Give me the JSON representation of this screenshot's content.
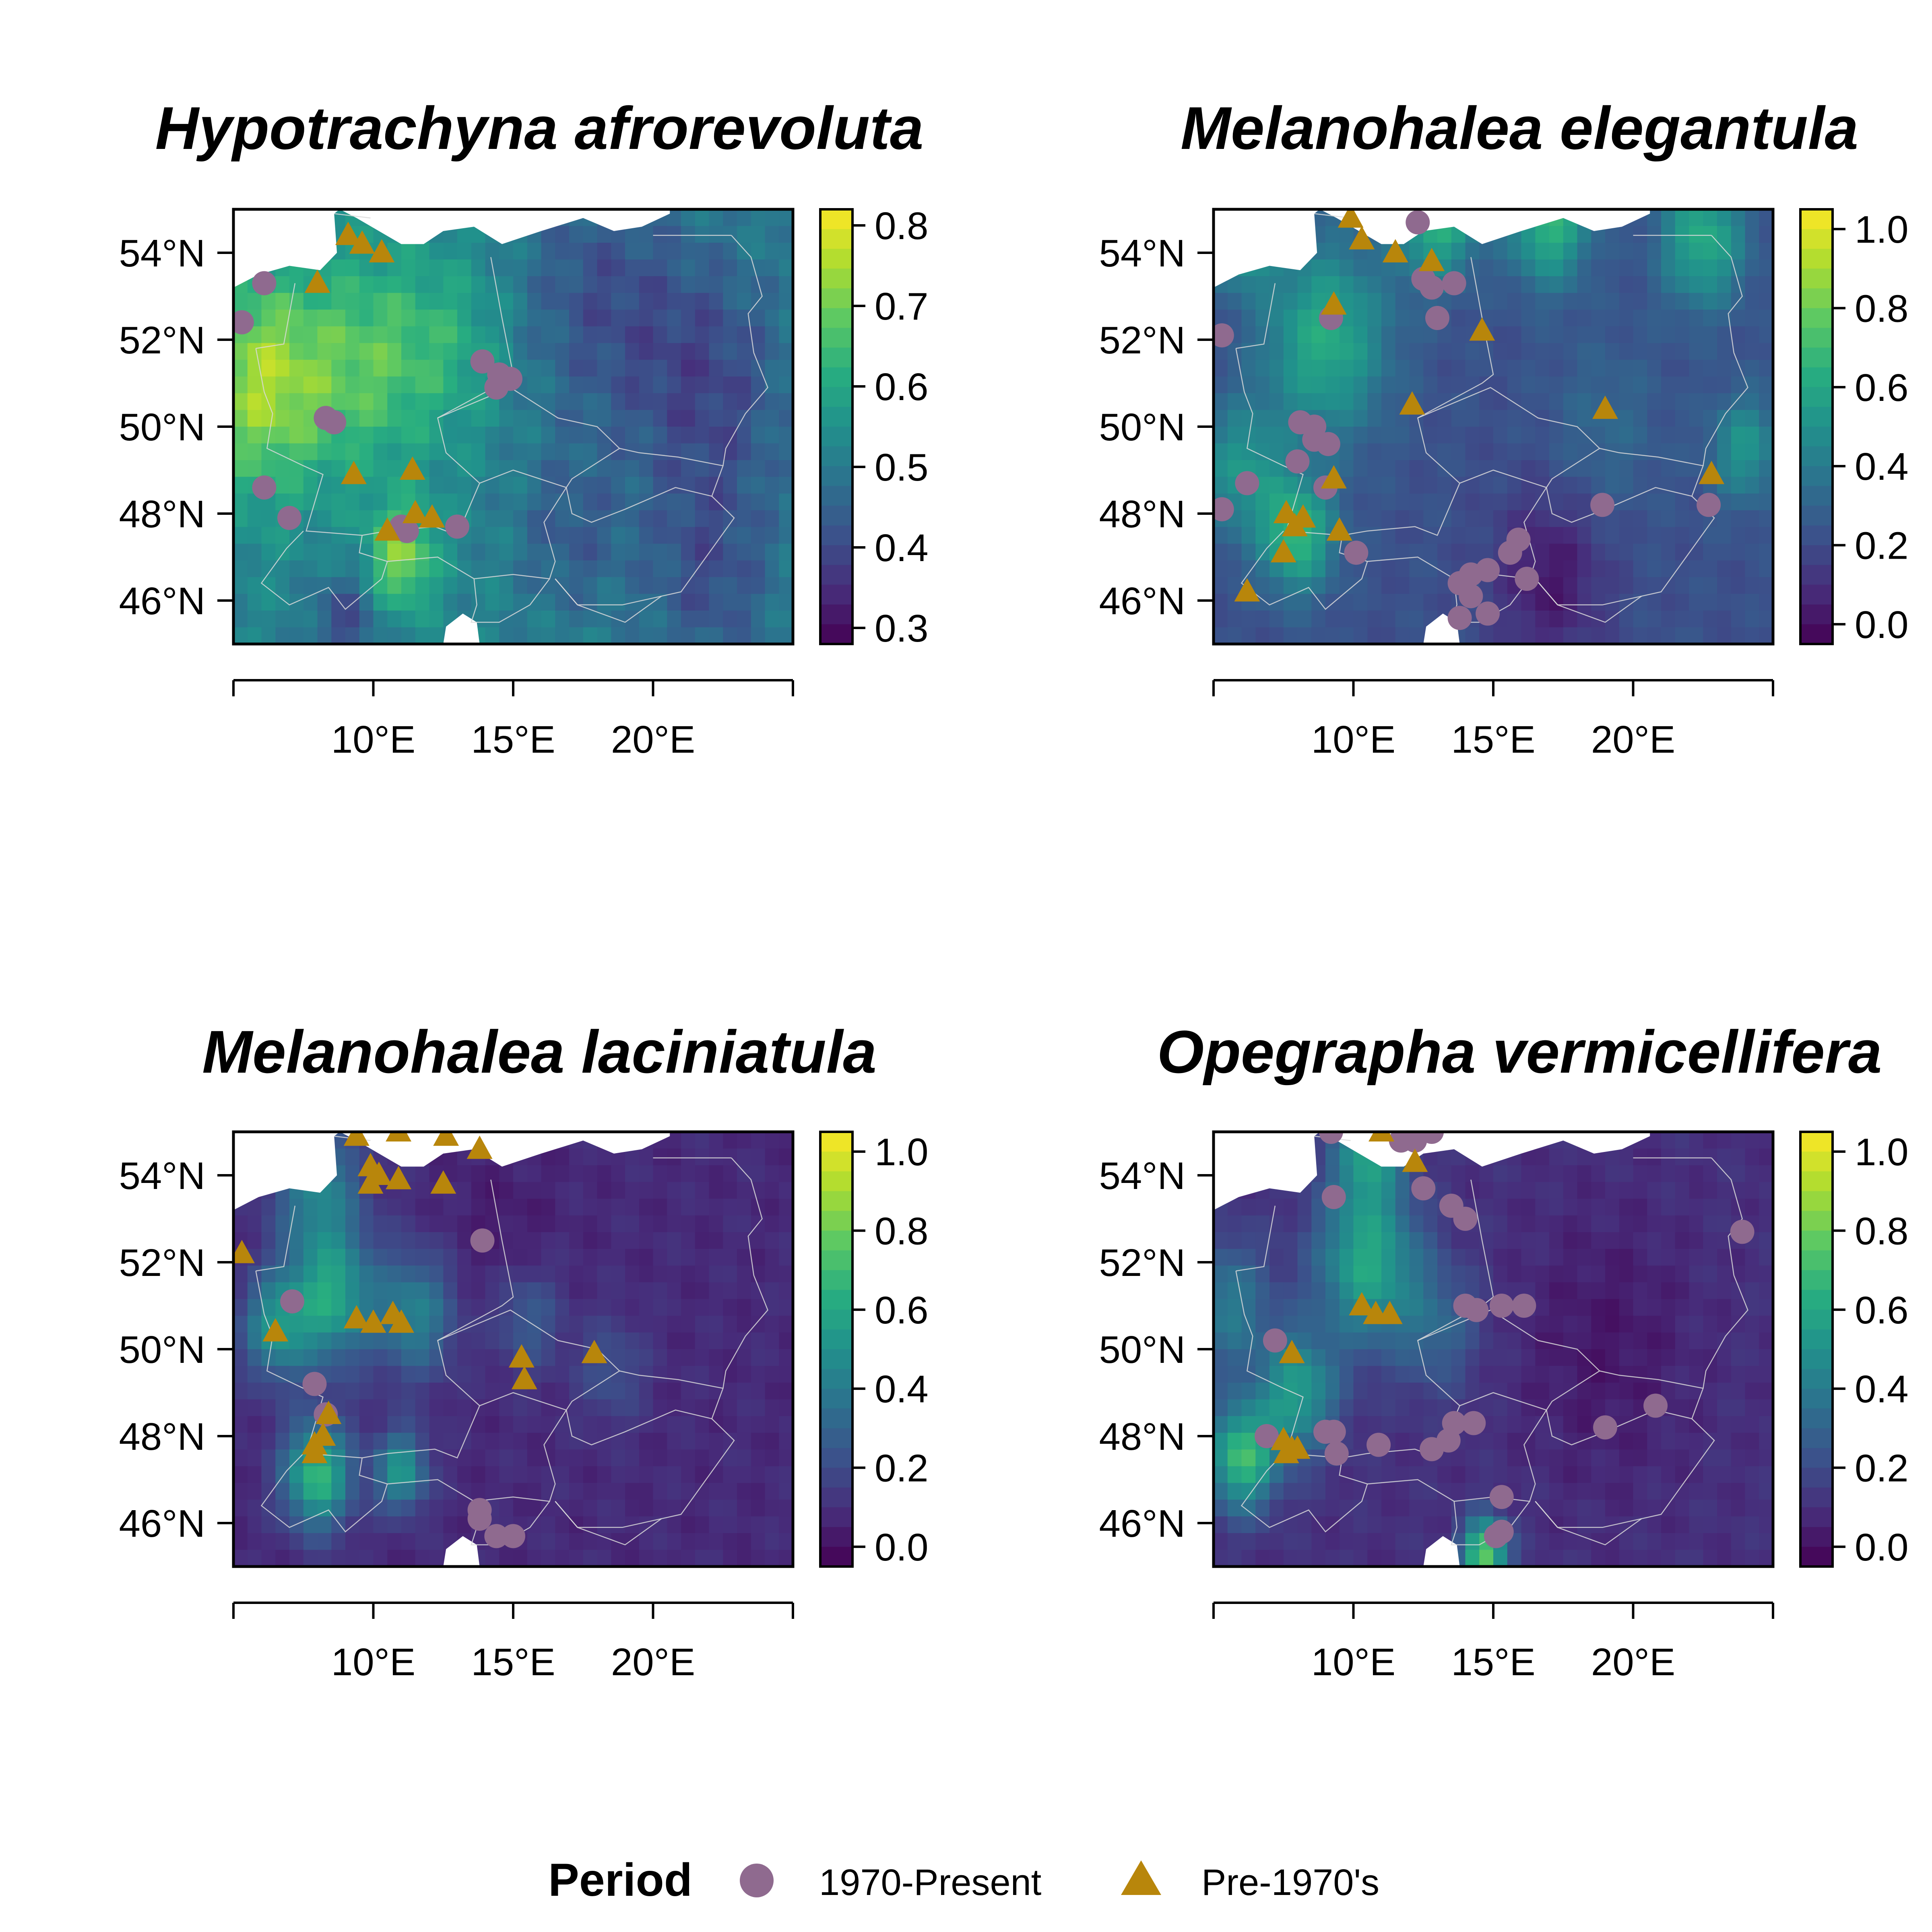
{
  "figure": {
    "legend": {
      "title": "Period",
      "entries": [
        {
          "label": "1970-Present",
          "marker": "circle",
          "color": "#8f6a8f"
        },
        {
          "label": "Pre-1970's",
          "marker": "triangle",
          "color": "#b8860b"
        }
      ]
    },
    "palette": [
      "#440154",
      "#472d7b",
      "#3b528b",
      "#2c728e",
      "#21918c",
      "#28ae80",
      "#5ec962",
      "#addc30",
      "#fde725"
    ],
    "border_color": "#d9d9d9"
  },
  "chart_data": [
    {
      "type": "map",
      "title": "Hypotrachyna afrorevoluta",
      "xlim": [
        5,
        25
      ],
      "ylim": [
        45,
        55
      ],
      "x_ticks": [
        "10°E",
        "15°E",
        "20°E"
      ],
      "y_ticks": [
        "46°N",
        "48°N",
        "50°N",
        "52°N",
        "54°N"
      ],
      "colorbar": {
        "min": 0.28,
        "max": 0.82,
        "ticks": [
          0.3,
          0.4,
          0.5,
          0.6,
          0.7,
          0.8
        ],
        "tick_labels": [
          "0.3",
          "0.4",
          "0.5",
          "0.6",
          "0.7",
          "0.8"
        ]
      },
      "field": {
        "base": 0.52,
        "hotspots": [
          [
            6,
            51,
            0.22,
            2.5
          ],
          [
            10,
            51.5,
            0.14,
            2.5
          ],
          [
            11,
            47,
            0.2,
            1.2
          ],
          [
            13,
            52,
            0.07,
            2
          ],
          [
            18,
            53,
            -0.1,
            3
          ],
          [
            22,
            51,
            -0.12,
            3
          ],
          [
            22,
            46.5,
            -0.1,
            2.5
          ],
          [
            9,
            45.5,
            -0.12,
            1.2
          ],
          [
            17,
            47.5,
            -0.08,
            2
          ]
        ]
      },
      "points_1970_present": [
        [
          5.3,
          52.4
        ],
        [
          6.1,
          53.3
        ],
        [
          6.1,
          48.6
        ],
        [
          7,
          47.9
        ],
        [
          8.3,
          50.2
        ],
        [
          8.6,
          50.1
        ],
        [
          13.9,
          51.5
        ],
        [
          14.5,
          51.2
        ],
        [
          14.4,
          50.9
        ],
        [
          14.9,
          51.1
        ],
        [
          11,
          47.7
        ],
        [
          11.2,
          47.6
        ],
        [
          13,
          47.7
        ]
      ],
      "points_pre_1970": [
        [
          8,
          53.3
        ],
        [
          9.1,
          54.4
        ],
        [
          9.6,
          54.2
        ],
        [
          10.3,
          54
        ],
        [
          9.3,
          48.9
        ],
        [
          11.4,
          49
        ],
        [
          10.5,
          47.6
        ],
        [
          11.5,
          48
        ],
        [
          12.1,
          47.9
        ]
      ]
    },
    {
      "type": "map",
      "title": "Melanohalea elegantula",
      "xlim": [
        5,
        25
      ],
      "ylim": [
        45,
        55
      ],
      "x_ticks": [
        "10°E",
        "15°E",
        "20°E"
      ],
      "y_ticks": [
        "46°N",
        "48°N",
        "50°N",
        "52°N",
        "54°N"
      ],
      "colorbar": {
        "min": -0.05,
        "max": 1.05,
        "ticks": [
          0.0,
          0.2,
          0.4,
          0.6,
          0.8,
          1.0
        ],
        "tick_labels": [
          "0.0",
          "0.2",
          "0.4",
          "0.6",
          "0.8",
          "1.0"
        ]
      },
      "field": {
        "base": 0.22,
        "hotspots": [
          [
            6,
            54.6,
            0.5,
            1.2
          ],
          [
            9,
            52,
            0.4,
            2.2
          ],
          [
            8,
            47.5,
            0.45,
            1.3
          ],
          [
            6,
            49,
            0.3,
            1.5
          ],
          [
            13,
            54.8,
            0.45,
            1.4
          ],
          [
            17,
            54.7,
            0.45,
            1.4
          ],
          [
            22.5,
            54.3,
            0.4,
            1.5
          ],
          [
            24,
            49.5,
            0.3,
            1.2
          ],
          [
            19,
            50,
            0.1,
            2
          ],
          [
            17,
            46.5,
            -0.2,
            2
          ]
        ]
      },
      "points_1970_present": [
        [
          5.3,
          52.1
        ],
        [
          12.3,
          54.7
        ],
        [
          12.5,
          53.4
        ],
        [
          12.8,
          53.2
        ],
        [
          13.6,
          53.3
        ],
        [
          13,
          52.5
        ],
        [
          9.2,
          52.5
        ],
        [
          8.1,
          50.1
        ],
        [
          8.6,
          50
        ],
        [
          8.6,
          49.7
        ],
        [
          9.1,
          49.6
        ],
        [
          8,
          49.2
        ],
        [
          9,
          48.6
        ],
        [
          6.2,
          48.7
        ],
        [
          5.3,
          48.1
        ],
        [
          10.1,
          47.1
        ],
        [
          13.8,
          46.4
        ],
        [
          14.2,
          46.6
        ],
        [
          14.8,
          46.7
        ],
        [
          15.6,
          47.1
        ],
        [
          15.9,
          47.4
        ],
        [
          16.2,
          46.5
        ],
        [
          14.2,
          46.1
        ],
        [
          14.8,
          45.7
        ],
        [
          13.8,
          45.6
        ],
        [
          18.9,
          48.2
        ],
        [
          22.7,
          48.2
        ]
      ],
      "points_pre_1970": [
        [
          9.9,
          54.8
        ],
        [
          10.3,
          54.3
        ],
        [
          11.5,
          54
        ],
        [
          12.8,
          53.8
        ],
        [
          14.6,
          52.2
        ],
        [
          9.3,
          52.8
        ],
        [
          12.1,
          50.5
        ],
        [
          19,
          50.4
        ],
        [
          9.3,
          48.8
        ],
        [
          7.6,
          48
        ],
        [
          7.9,
          47.7
        ],
        [
          8.2,
          47.9
        ],
        [
          9.5,
          47.6
        ],
        [
          7.5,
          47.1
        ],
        [
          6.2,
          46.2
        ],
        [
          22.8,
          48.9
        ]
      ]
    },
    {
      "type": "map",
      "title": "Melanohalea laciniatula",
      "xlim": [
        5,
        25
      ],
      "ylim": [
        45,
        55
      ],
      "x_ticks": [
        "10°E",
        "15°E",
        "20°E"
      ],
      "y_ticks": [
        "46°N",
        "48°N",
        "50°N",
        "52°N",
        "54°N"
      ],
      "colorbar": {
        "min": -0.05,
        "max": 1.05,
        "ticks": [
          0.0,
          0.2,
          0.4,
          0.6,
          0.8,
          1.0
        ],
        "tick_labels": [
          "0.0",
          "0.2",
          "0.4",
          "0.6",
          "0.8",
          "1.0"
        ]
      },
      "field": {
        "base": 0.08,
        "hotspots": [
          [
            8,
            47.1,
            0.6,
            1.2
          ],
          [
            11,
            47.2,
            0.45,
            0.9
          ],
          [
            8.5,
            51.2,
            0.5,
            1.5
          ],
          [
            11.5,
            50.8,
            0.35,
            1.4
          ],
          [
            6.5,
            50.5,
            0.4,
            1.2
          ],
          [
            8,
            53.7,
            0.35,
            1.5
          ],
          [
            15.5,
            50.7,
            0.2,
            1.2
          ],
          [
            18.5,
            49.5,
            0.15,
            1.2
          ],
          [
            14.5,
            52.5,
            -0.05,
            2
          ]
        ]
      },
      "points_1970_present": [
        [
          13.9,
          52.5
        ],
        [
          7.1,
          51.1
        ],
        [
          7.9,
          49.2
        ],
        [
          8.3,
          48.5
        ],
        [
          13.8,
          46.3
        ],
        [
          13.8,
          46.1
        ],
        [
          14.4,
          45.7
        ],
        [
          15,
          45.7
        ]
      ],
      "points_pre_1970": [
        [
          9.4,
          54.9
        ],
        [
          10.9,
          55
        ],
        [
          12.6,
          54.9
        ],
        [
          13.8,
          54.6
        ],
        [
          9.9,
          54.2
        ],
        [
          10.2,
          54
        ],
        [
          10.9,
          53.9
        ],
        [
          9.9,
          53.8
        ],
        [
          12.5,
          53.8
        ],
        [
          5.3,
          52.2
        ],
        [
          6.5,
          50.4
        ],
        [
          9.4,
          50.7
        ],
        [
          10,
          50.6
        ],
        [
          10.7,
          50.8
        ],
        [
          11,
          50.6
        ],
        [
          15.3,
          49.8
        ],
        [
          17.9,
          49.9
        ],
        [
          15.4,
          49.3
        ],
        [
          8.4,
          48.5
        ],
        [
          7.9,
          47.8
        ],
        [
          8.2,
          48
        ],
        [
          7.9,
          47.6
        ]
      ]
    },
    {
      "type": "map",
      "title": "Opegrapha vermicellifera",
      "xlim": [
        5,
        25
      ],
      "ylim": [
        45,
        55
      ],
      "x_ticks": [
        "10°E",
        "15°E",
        "20°E"
      ],
      "y_ticks": [
        "46°N",
        "48°N",
        "50°N",
        "52°N",
        "54°N"
      ],
      "colorbar": {
        "min": -0.05,
        "max": 1.05,
        "ticks": [
          0.0,
          0.2,
          0.4,
          0.6,
          0.8,
          1.0
        ],
        "tick_labels": [
          "0.0",
          "0.2",
          "0.4",
          "0.6",
          "0.8",
          "1.0"
        ]
      },
      "field": {
        "base": 0.1,
        "hotspots": [
          [
            10.5,
            52,
            0.5,
            1.8
          ],
          [
            8,
            49,
            0.45,
            1.4
          ],
          [
            6,
            47.5,
            0.6,
            1.2
          ],
          [
            5.5,
            51,
            0.3,
            1.5
          ],
          [
            10.5,
            54.5,
            0.4,
            1.2
          ],
          [
            14.7,
            45.3,
            0.7,
            0.8
          ],
          [
            13,
            50.5,
            0.2,
            1.5
          ],
          [
            19,
            50,
            -0.08,
            3
          ]
        ]
      },
      "points_1970_present": [
        [
          9.2,
          55
        ],
        [
          11.7,
          54.8
        ],
        [
          12.2,
          54.8
        ],
        [
          12.8,
          55
        ],
        [
          9.3,
          53.5
        ],
        [
          12.5,
          53.7
        ],
        [
          13.5,
          53.3
        ],
        [
          14,
          53
        ],
        [
          23.9,
          52.7
        ],
        [
          14,
          51
        ],
        [
          14.4,
          50.9
        ],
        [
          15.3,
          51
        ],
        [
          16.1,
          51
        ],
        [
          7.2,
          50.2
        ],
        [
          6.9,
          48
        ],
        [
          9,
          48.1
        ],
        [
          9.3,
          48.1
        ],
        [
          9.4,
          47.6
        ],
        [
          10.9,
          47.8
        ],
        [
          12.8,
          47.7
        ],
        [
          13.4,
          47.9
        ],
        [
          13.6,
          48.3
        ],
        [
          14.3,
          48.3
        ],
        [
          19,
          48.2
        ],
        [
          20.8,
          48.7
        ],
        [
          15.3,
          46.6
        ],
        [
          15.3,
          45.8
        ],
        [
          15.1,
          45.7
        ]
      ],
      "points_pre_1970": [
        [
          11,
          55
        ],
        [
          12.2,
          54.3
        ],
        [
          10.3,
          51
        ],
        [
          10.8,
          50.8
        ],
        [
          11.3,
          50.8
        ],
        [
          7.8,
          49.9
        ],
        [
          7.5,
          47.9
        ],
        [
          7.8,
          47.7
        ],
        [
          7.6,
          47.6
        ],
        [
          8,
          47.7
        ]
      ]
    }
  ]
}
